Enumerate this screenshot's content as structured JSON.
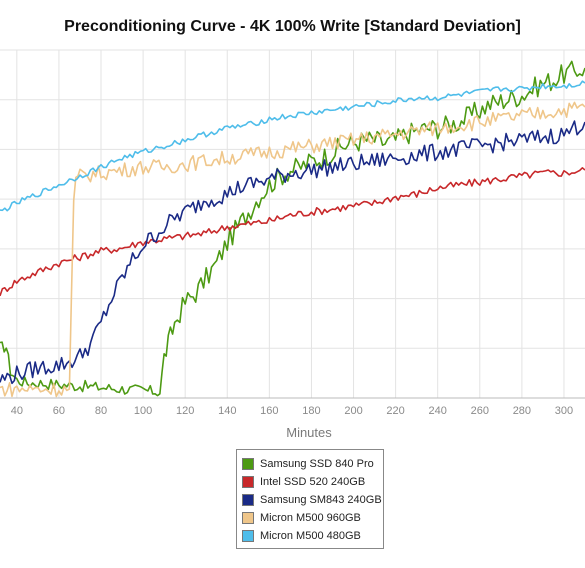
{
  "chart_data": {
    "type": "line",
    "title": "Preconditioning Curve - 4K 100% Write [Standard Deviation]",
    "xlabel": "Minutes",
    "ylabel": "",
    "x_visible_range": [
      32,
      310
    ],
    "x_ticks": [
      40,
      60,
      80,
      100,
      120,
      140,
      160,
      180,
      200,
      220,
      240,
      260,
      280,
      300
    ],
    "grid": true,
    "legend_position": "bottom-center",
    "series": [
      {
        "name": "Samsung SSD 840 Pro",
        "color": "#4d9a13",
        "points": [
          [
            32,
            0.17
          ],
          [
            35,
            0.17
          ],
          [
            37,
            0.09
          ],
          [
            40,
            0.06
          ],
          [
            45,
            0.05
          ],
          [
            50,
            0.05
          ],
          [
            60,
            0.045
          ],
          [
            70,
            0.04
          ],
          [
            80,
            0.035
          ],
          [
            90,
            0.03
          ],
          [
            100,
            0.025
          ],
          [
            108,
            0.02
          ],
          [
            110,
            0.14
          ],
          [
            112,
            0.18
          ],
          [
            115,
            0.25
          ],
          [
            120,
            0.32
          ],
          [
            125,
            0.35
          ],
          [
            130,
            0.4
          ],
          [
            135,
            0.45
          ],
          [
            140,
            0.52
          ],
          [
            145,
            0.57
          ],
          [
            150,
            0.62
          ],
          [
            155,
            0.67
          ],
          [
            160,
            0.71
          ],
          [
            165,
            0.74
          ],
          [
            170,
            0.76
          ],
          [
            175,
            0.77
          ],
          [
            180,
            0.79
          ],
          [
            185,
            0.8
          ],
          [
            190,
            0.82
          ],
          [
            195,
            0.84
          ],
          [
            200,
            0.85
          ],
          [
            205,
            0.86
          ],
          [
            210,
            0.86
          ],
          [
            215,
            0.85
          ],
          [
            220,
            0.86
          ],
          [
            225,
            0.88
          ],
          [
            230,
            0.89
          ],
          [
            235,
            0.9
          ],
          [
            240,
            0.9
          ],
          [
            245,
            0.91
          ],
          [
            250,
            0.92
          ],
          [
            255,
            0.94
          ],
          [
            260,
            0.96
          ],
          [
            265,
            0.98
          ],
          [
            270,
            0.99
          ],
          [
            275,
            1.0
          ],
          [
            280,
            1.01
          ],
          [
            285,
            1.03
          ],
          [
            290,
            1.05
          ],
          [
            295,
            1.06
          ],
          [
            300,
            1.08
          ],
          [
            305,
            1.09
          ],
          [
            310,
            1.1
          ]
        ]
      },
      {
        "name": "Intel SSD 520 240GB",
        "color": "#c8282a",
        "points": [
          [
            32,
            0.35
          ],
          [
            40,
            0.39
          ],
          [
            50,
            0.42
          ],
          [
            60,
            0.45
          ],
          [
            70,
            0.47
          ],
          [
            80,
            0.49
          ],
          [
            90,
            0.5
          ],
          [
            100,
            0.52
          ],
          [
            110,
            0.53
          ],
          [
            120,
            0.54
          ],
          [
            130,
            0.55
          ],
          [
            140,
            0.57
          ],
          [
            150,
            0.58
          ],
          [
            160,
            0.59
          ],
          [
            170,
            0.61
          ],
          [
            180,
            0.62
          ],
          [
            190,
            0.63
          ],
          [
            200,
            0.64
          ],
          [
            210,
            0.65
          ],
          [
            220,
            0.67
          ],
          [
            230,
            0.68
          ],
          [
            240,
            0.7
          ],
          [
            250,
            0.71
          ],
          [
            260,
            0.72
          ],
          [
            270,
            0.73
          ],
          [
            280,
            0.74
          ],
          [
            290,
            0.75
          ],
          [
            300,
            0.75
          ],
          [
            310,
            0.76
          ]
        ]
      },
      {
        "name": "Samsung SM843 240GB",
        "color": "#1a2a86",
        "points": [
          [
            32,
            0.06
          ],
          [
            40,
            0.08
          ],
          [
            50,
            0.1
          ],
          [
            60,
            0.11
          ],
          [
            65,
            0.12
          ],
          [
            70,
            0.14
          ],
          [
            75,
            0.18
          ],
          [
            80,
            0.25
          ],
          [
            85,
            0.33
          ],
          [
            90,
            0.4
          ],
          [
            95,
            0.46
          ],
          [
            100,
            0.51
          ],
          [
            105,
            0.54
          ],
          [
            110,
            0.57
          ],
          [
            115,
            0.6
          ],
          [
            120,
            0.62
          ],
          [
            125,
            0.64
          ],
          [
            130,
            0.66
          ],
          [
            135,
            0.67
          ],
          [
            140,
            0.68
          ],
          [
            145,
            0.7
          ],
          [
            150,
            0.71
          ],
          [
            155,
            0.72
          ],
          [
            160,
            0.73
          ],
          [
            170,
            0.75
          ],
          [
            180,
            0.76
          ],
          [
            190,
            0.77
          ],
          [
            200,
            0.78
          ],
          [
            210,
            0.79
          ],
          [
            220,
            0.8
          ],
          [
            230,
            0.81
          ],
          [
            240,
            0.82
          ],
          [
            250,
            0.83
          ],
          [
            260,
            0.84
          ],
          [
            270,
            0.85
          ],
          [
            280,
            0.86
          ],
          [
            290,
            0.87
          ],
          [
            300,
            0.88
          ],
          [
            305,
            0.9
          ],
          [
            310,
            0.92
          ]
        ]
      },
      {
        "name": "Micron M500 960GB",
        "color": "#efc68a",
        "points": [
          [
            32,
            0.03
          ],
          [
            40,
            0.03
          ],
          [
            50,
            0.03
          ],
          [
            60,
            0.03
          ],
          [
            65,
            0.03
          ],
          [
            66,
            0.35
          ],
          [
            67,
            0.65
          ],
          [
            68,
            0.72
          ],
          [
            70,
            0.74
          ],
          [
            80,
            0.75
          ],
          [
            90,
            0.76
          ],
          [
            100,
            0.77
          ],
          [
            110,
            0.77
          ],
          [
            120,
            0.78
          ],
          [
            130,
            0.79
          ],
          [
            140,
            0.8
          ],
          [
            150,
            0.81
          ],
          [
            160,
            0.82
          ],
          [
            170,
            0.83
          ],
          [
            180,
            0.84
          ],
          [
            190,
            0.85
          ],
          [
            200,
            0.86
          ],
          [
            210,
            0.87
          ],
          [
            220,
            0.88
          ],
          [
            230,
            0.89
          ],
          [
            240,
            0.9
          ],
          [
            250,
            0.91
          ],
          [
            260,
            0.92
          ],
          [
            270,
            0.93
          ],
          [
            280,
            0.94
          ],
          [
            290,
            0.95
          ],
          [
            300,
            0.96
          ],
          [
            310,
            0.97
          ]
        ]
      },
      {
        "name": "Micron M500 480GB",
        "color": "#4fbdea",
        "points": [
          [
            32,
            0.62
          ],
          [
            40,
            0.65
          ],
          [
            50,
            0.68
          ],
          [
            60,
            0.71
          ],
          [
            70,
            0.74
          ],
          [
            80,
            0.77
          ],
          [
            90,
            0.8
          ],
          [
            100,
            0.82
          ],
          [
            110,
            0.84
          ],
          [
            120,
            0.86
          ],
          [
            130,
            0.88
          ],
          [
            140,
            0.9
          ],
          [
            150,
            0.91
          ],
          [
            160,
            0.93
          ],
          [
            170,
            0.94
          ],
          [
            180,
            0.95
          ],
          [
            190,
            0.96
          ],
          [
            200,
            0.97
          ],
          [
            210,
            0.98
          ],
          [
            220,
            0.99
          ],
          [
            230,
            1.0
          ],
          [
            240,
            1.0
          ],
          [
            250,
            1.01
          ],
          [
            260,
            1.02
          ],
          [
            270,
            1.03
          ],
          [
            280,
            1.03
          ],
          [
            290,
            1.04
          ],
          [
            300,
            1.04
          ],
          [
            310,
            1.05
          ]
        ]
      }
    ]
  }
}
